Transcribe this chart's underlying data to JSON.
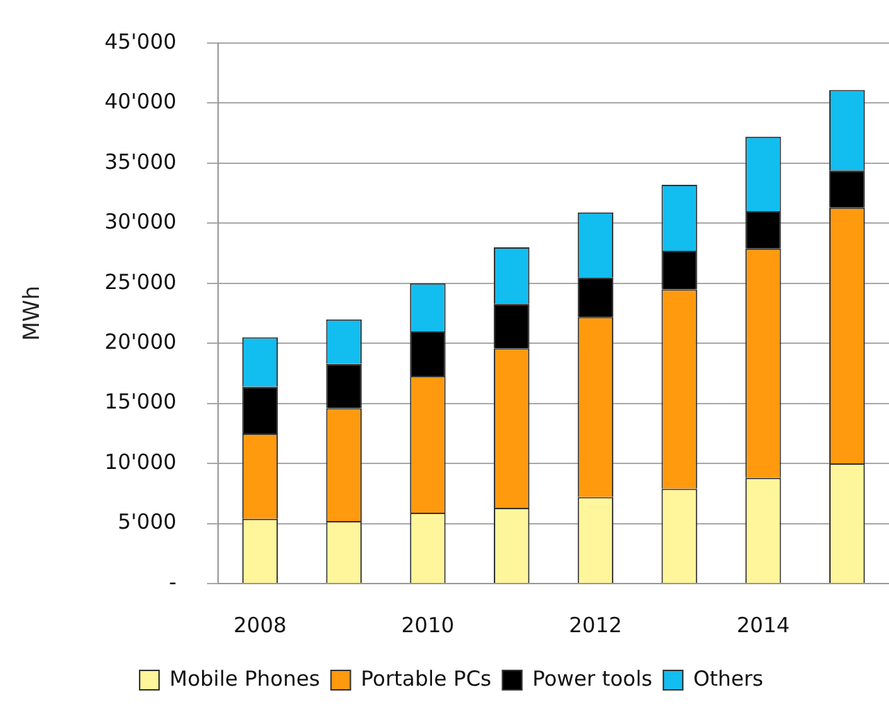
{
  "chart_data": {
    "type": "bar",
    "stacked": true,
    "ylabel": "MWh",
    "categories": [
      "2008",
      null,
      "2010",
      null,
      "2012",
      null,
      "2014",
      null
    ],
    "series": [
      {
        "name": "Mobile Phones",
        "color": "#fff59a",
        "values": [
          5400,
          5200,
          5900,
          6300,
          7200,
          7900,
          8800,
          10000
        ]
      },
      {
        "name": "Portable PCs",
        "color": "#ff9a0e",
        "values": [
          7100,
          9400,
          11400,
          13300,
          15000,
          16600,
          19100,
          21300
        ]
      },
      {
        "name": "Power tools",
        "color": "#000000",
        "values": [
          3900,
          3700,
          3700,
          3700,
          3300,
          3200,
          3100,
          3100
        ]
      },
      {
        "name": "Others",
        "color": "#12bdf0",
        "values": [
          4100,
          3700,
          4000,
          4700,
          5400,
          5500,
          6200,
          6700
        ]
      }
    ],
    "ylim": [
      0,
      45000
    ],
    "yticks": [
      {
        "value": 0,
        "label": "-"
      },
      {
        "value": 5000,
        "label": "5'000"
      },
      {
        "value": 10000,
        "label": "10'000"
      },
      {
        "value": 15000,
        "label": "15'000"
      },
      {
        "value": 20000,
        "label": "20'000"
      },
      {
        "value": 25000,
        "label": "25'000"
      },
      {
        "value": 30000,
        "label": "30'000"
      },
      {
        "value": 35000,
        "label": "35'000"
      },
      {
        "value": 40000,
        "label": "40'000"
      },
      {
        "value": 45000,
        "label": "45'000"
      }
    ],
    "grid": "y",
    "legend": "bottom"
  }
}
